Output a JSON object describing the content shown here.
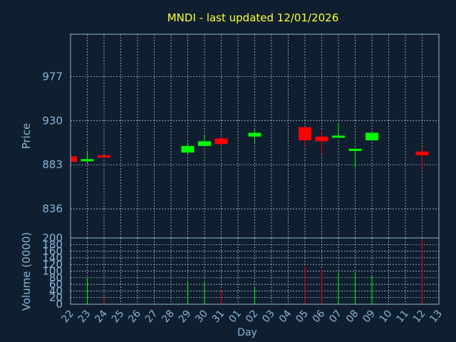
{
  "colors": {
    "background": "#0f1f30",
    "title": "#ffff33",
    "axis_text": "#8ab4d6",
    "frame": "#8ab4d6",
    "grid": "#c8d2dc",
    "up": "#00ff00",
    "down": "#ff0000"
  },
  "chart_data": {
    "type": "candlestick",
    "title": "MNDI - last updated 12/01/2026",
    "xlabel": "Day",
    "price": {
      "ylabel": "Price",
      "yticks": [
        836,
        883,
        930,
        977
      ],
      "ylim": [
        805,
        1022
      ]
    },
    "volume": {
      "ylabel": "Volume (0000)",
      "yticks": [
        0,
        20,
        40,
        60,
        80,
        100,
        120,
        140,
        160,
        180,
        200
      ],
      "ylim": [
        0,
        200
      ]
    },
    "x_ticks": [
      "22",
      "23",
      "24",
      "25",
      "26",
      "27",
      "28",
      "29",
      "30",
      "31",
      "01",
      "02",
      "03",
      "04",
      "05",
      "06",
      "07",
      "08",
      "09",
      "10",
      "11",
      "12",
      "13"
    ],
    "candles": [
      {
        "day": "22",
        "open": 892,
        "high": 892,
        "low": 886,
        "close": 886,
        "volume": 0
      },
      {
        "day": "23",
        "open": 887,
        "high": 898,
        "low": 885,
        "close": 889,
        "volume": 80
      },
      {
        "day": "24",
        "open": 893,
        "high": 893,
        "low": 891,
        "close": 891,
        "volume": 22
      },
      {
        "day": "29",
        "open": 896,
        "high": 907,
        "low": 894,
        "close": 903,
        "volume": 70
      },
      {
        "day": "30",
        "open": 903,
        "high": 915,
        "low": 902,
        "close": 908,
        "volume": 68
      },
      {
        "day": "31",
        "open": 911,
        "high": 912,
        "low": 903,
        "close": 905,
        "volume": 45
      },
      {
        "day": "02",
        "open": 913,
        "high": 921,
        "low": 907,
        "close": 917,
        "volume": 52
      },
      {
        "day": "05",
        "open": 923,
        "high": 923,
        "low": 903,
        "close": 909,
        "volume": 115
      },
      {
        "day": "06",
        "open": 913,
        "high": 919,
        "low": 895,
        "close": 908,
        "volume": 105
      },
      {
        "day": "07",
        "open": 912,
        "high": 928,
        "low": 912,
        "close": 914,
        "volume": 95
      },
      {
        "day": "08",
        "open": 898,
        "high": 901,
        "low": 880,
        "close": 900,
        "volume": 95
      },
      {
        "day": "09",
        "open": 909,
        "high": 917,
        "low": 909,
        "close": 917,
        "volume": 85
      },
      {
        "day": "12",
        "open": 897,
        "high": 902,
        "low": 878,
        "close": 893,
        "volume": 200
      }
    ],
    "grid": true
  }
}
